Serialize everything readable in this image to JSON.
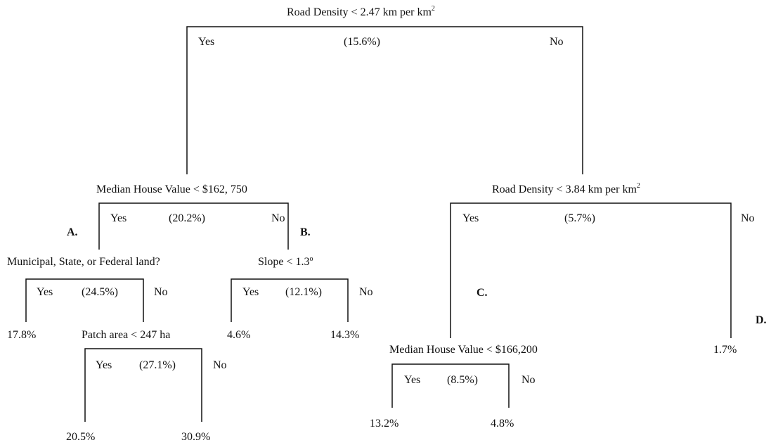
{
  "root": {
    "label": "Road Density < 2.47 km per km",
    "superscript": "2",
    "yes": "Yes",
    "pct": "(15.6%)",
    "no": "No"
  },
  "left": {
    "label": "Median House Value < $162, 750",
    "yes": "Yes",
    "pct": "(20.2%)",
    "no": "No",
    "marker_a": "A.",
    "marker_b": "B."
  },
  "land": {
    "label": "Municipal, State, or Federal land?",
    "yes": "Yes",
    "pct": "(24.5%)",
    "no": "No",
    "leaf_yes": "17.8%"
  },
  "patch": {
    "label": "Patch area < 247 ha",
    "yes": "Yes",
    "pct": "(27.1%)",
    "no": "No",
    "leaf_yes": "20.5%",
    "leaf_no": "30.9%"
  },
  "slope": {
    "label": "Slope < 1.3",
    "degree": "o",
    "yes": "Yes",
    "pct": "(12.1%)",
    "no": "No",
    "leaf_yes": "4.6%",
    "leaf_no": "14.3%"
  },
  "right": {
    "label": "Road Density < 3.84 km per km",
    "superscript": "2",
    "yes": "Yes",
    "pct": "(5.7%)",
    "no": "No",
    "marker_c": "C.",
    "marker_d": "D.",
    "leaf_no": "1.7%"
  },
  "house2": {
    "label": "Median House Value < $166,200",
    "yes": "Yes",
    "pct": "(8.5%)",
    "no": "No",
    "leaf_yes": "13.2%",
    "leaf_no": "4.8%"
  }
}
